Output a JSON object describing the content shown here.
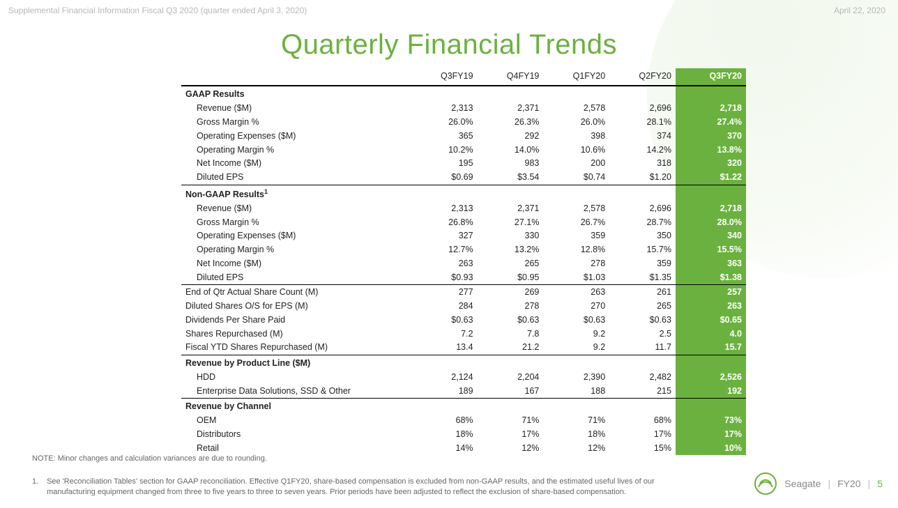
{
  "header": {
    "left": "Supplemental Financial Information Fiscal Q3 2020 (quarter ended April 3, 2020)",
    "right": "April 22, 2020"
  },
  "title": "Quarterly Financial Trends",
  "columns": [
    "Q3FY19",
    "Q4FY19",
    "Q1FY20",
    "Q2FY20",
    "Q3FY20"
  ],
  "highlight_col_index": 4,
  "colors": {
    "accent": "#6bb13f",
    "header_gray": "#b8b8b8",
    "text": "#222222",
    "note_gray": "#666666",
    "rule": "#000000",
    "bg": "#ffffff"
  },
  "sections": [
    {
      "title": "GAAP Results",
      "rows": [
        {
          "label": "Revenue ($M)",
          "v": [
            "2,313",
            "2,371",
            "2,578",
            "2,696",
            "2,718"
          ]
        },
        {
          "label": "Gross Margin %",
          "v": [
            "26.0%",
            "26.3%",
            "26.0%",
            "28.1%",
            "27.4%"
          ]
        },
        {
          "label": "Operating Expenses ($M)",
          "v": [
            "365",
            "292",
            "398",
            "374",
            "370"
          ]
        },
        {
          "label": "Operating Margin %",
          "v": [
            "10.2%",
            "14.0%",
            "10.6%",
            "14.2%",
            "13.8%"
          ]
        },
        {
          "label": "Net Income ($M)",
          "v": [
            "195",
            "983",
            "200",
            "318",
            "320"
          ]
        },
        {
          "label": "Diluted EPS",
          "v": [
            "$0.69",
            "$3.54",
            "$0.74",
            "$1.20",
            "$1.22"
          ]
        }
      ]
    },
    {
      "title": "Non-GAAP Results",
      "sup": "1",
      "rows": [
        {
          "label": "Revenue ($M)",
          "v": [
            "2,313",
            "2,371",
            "2,578",
            "2,696",
            "2,718"
          ]
        },
        {
          "label": "Gross Margin %",
          "v": [
            "26.8%",
            "27.1%",
            "26.7%",
            "28.7%",
            "28.0%"
          ]
        },
        {
          "label": "Operating Expenses ($M)",
          "v": [
            "327",
            "330",
            "359",
            "350",
            "340"
          ]
        },
        {
          "label": "Operating Margin %",
          "v": [
            "12.7%",
            "13.2%",
            "12.8%",
            "15.7%",
            "15.5%"
          ]
        },
        {
          "label": "Net Income ($M)",
          "v": [
            "263",
            "265",
            "278",
            "359",
            "363"
          ]
        },
        {
          "label": "Diluted EPS",
          "v": [
            "$0.93",
            "$0.95",
            "$1.03",
            "$1.35",
            "$1.38"
          ]
        }
      ]
    },
    {
      "title": "",
      "rows": [
        {
          "label": "End of Qtr Actual Share Count (M)",
          "v": [
            "277",
            "269",
            "263",
            "261",
            "257"
          ],
          "noindent": true
        },
        {
          "label": "Diluted Shares O/S for EPS (M)",
          "v": [
            "284",
            "278",
            "270",
            "265",
            "263"
          ],
          "noindent": true
        },
        {
          "label": "Dividends Per Share Paid",
          "v": [
            "$0.63",
            "$0.63",
            "$0.63",
            "$0.63",
            "$0.65"
          ],
          "noindent": true
        },
        {
          "label": "Shares Repurchased (M)",
          "v": [
            "7.2",
            "7.8",
            "9.2",
            "2.5",
            "4.0"
          ],
          "noindent": true
        },
        {
          "label": "Fiscal YTD Shares Repurchased (M)",
          "v": [
            "13.4",
            "21.2",
            "9.2",
            "11.7",
            "15.7"
          ],
          "noindent": true
        }
      ]
    },
    {
      "title": "Revenue by Product Line ($M)",
      "rows": [
        {
          "label": "HDD",
          "v": [
            "2,124",
            "2,204",
            "2,390",
            "2,482",
            "2,526"
          ]
        },
        {
          "label": "Enterprise Data Solutions, SSD & Other",
          "v": [
            "189",
            "167",
            "188",
            "215",
            "192"
          ]
        }
      ]
    },
    {
      "title": "Revenue by Channel",
      "rows": [
        {
          "label": "OEM",
          "v": [
            "68%",
            "71%",
            "71%",
            "68%",
            "73%"
          ]
        },
        {
          "label": "Distributors",
          "v": [
            "18%",
            "17%",
            "18%",
            "17%",
            "17%"
          ]
        },
        {
          "label": "Retail",
          "v": [
            "14%",
            "12%",
            "12%",
            "15%",
            "10%"
          ]
        }
      ]
    }
  ],
  "note": "NOTE: Minor changes and calculation variances are due to rounding.",
  "footnote": {
    "n": "1.",
    "text": "See  'Reconciliation Tables' section for GAAP reconciliation. Effective Q1FY20, share-based compensation is excluded from non-GAAP results, and the estimated useful lives of our manufacturing equipment changed from three to five years to three to seven years.  Prior periods have been adjusted to reflect the exclusion of share-based compensation."
  },
  "brand": {
    "name": "Seagate",
    "fy": "FY20",
    "page": "5"
  }
}
